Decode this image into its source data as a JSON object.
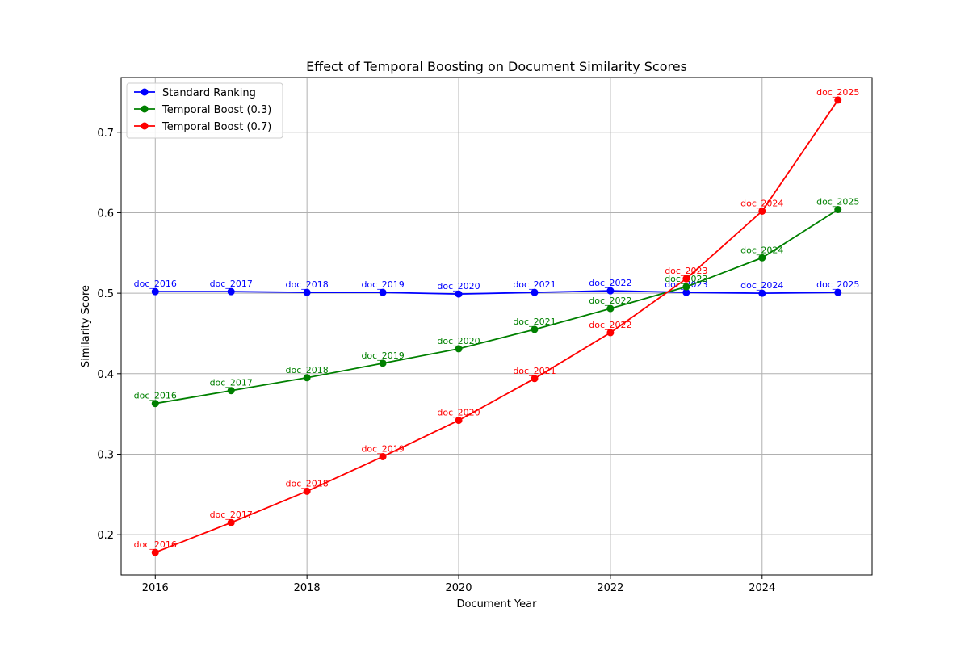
{
  "chart_data": {
    "type": "line",
    "title": "Effect of Temporal Boosting on Document Similarity Scores",
    "xlabel": "Document Year",
    "ylabel": "Similarity Score",
    "x": [
      2016,
      2017,
      2018,
      2019,
      2020,
      2021,
      2022,
      2023,
      2024,
      2025
    ],
    "xlim": [
      2015.55,
      2025.45
    ],
    "ylim": [
      0.15,
      0.768
    ],
    "xticks": [
      2016,
      2018,
      2020,
      2022,
      2024
    ],
    "yticks": [
      0.2,
      0.3,
      0.4,
      0.5,
      0.6,
      0.7
    ],
    "grid": true,
    "legend_position": "upper-left",
    "point_labels": [
      "doc_2016",
      "doc_2017",
      "doc_2018",
      "doc_2019",
      "doc_2020",
      "doc_2021",
      "doc_2022",
      "doc_2023",
      "doc_2024",
      "doc_2025"
    ],
    "series": [
      {
        "name": "Standard Ranking",
        "color": "#0000ff",
        "values": [
          0.502,
          0.502,
          0.501,
          0.501,
          0.499,
          0.501,
          0.503,
          0.501,
          0.5,
          0.501
        ]
      },
      {
        "name": "Temporal Boost (0.3)",
        "color": "#008000",
        "values": [
          0.363,
          0.379,
          0.395,
          0.413,
          0.431,
          0.455,
          0.481,
          0.508,
          0.544,
          0.604
        ]
      },
      {
        "name": "Temporal Boost (0.7)",
        "color": "#ff0000",
        "values": [
          0.178,
          0.215,
          0.254,
          0.297,
          0.342,
          0.394,
          0.451,
          0.518,
          0.602,
          0.74
        ]
      }
    ]
  }
}
